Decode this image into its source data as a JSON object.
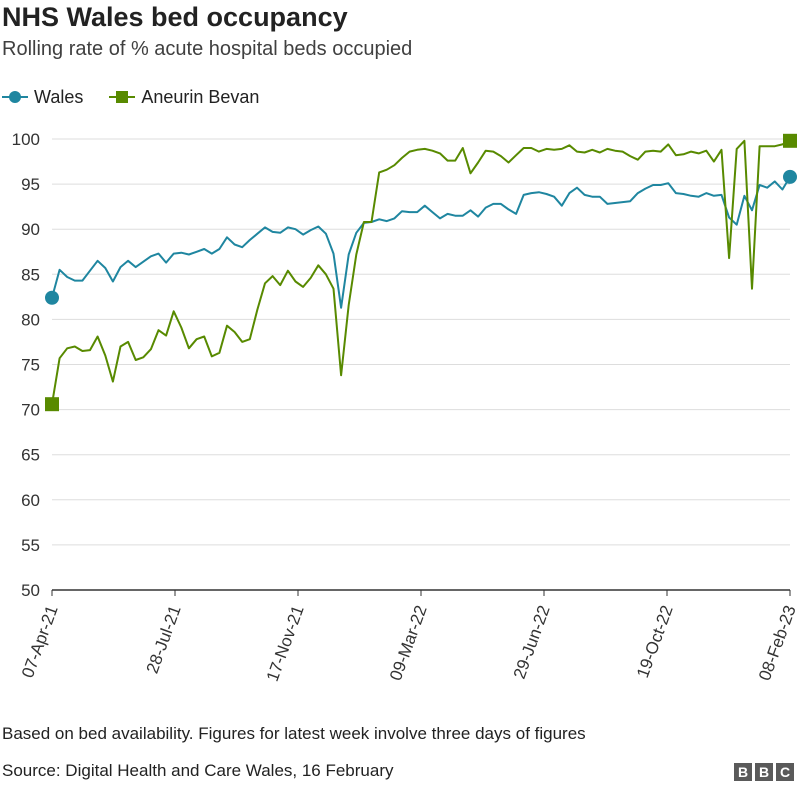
{
  "title": "NHS Wales bed occupancy",
  "subtitle": "Rolling rate of % acute hospital beds occupied",
  "footer": {
    "note": "Based on bed availability. Figures for latest week involve three days of figures",
    "source": "Source: Digital Health and Care Wales, 16 February",
    "brand": [
      "B",
      "B",
      "C"
    ]
  },
  "colors": {
    "wales": "#1f86a0",
    "aneurin_bevan": "#588a00",
    "grid": "#dddddd",
    "axis": "#333333"
  },
  "chart_data": {
    "type": "line",
    "legend_position": "top-left",
    "grid": true,
    "ylim": [
      50,
      100
    ],
    "yticks": [
      50,
      55,
      60,
      65,
      70,
      75,
      80,
      85,
      90,
      95,
      100
    ],
    "xlim": [
      "2021-04-07",
      "2023-02-08"
    ],
    "xticks": [
      {
        "date": "2021-04-07",
        "label": "07-Apr-21"
      },
      {
        "date": "2021-07-28",
        "label": "28-Jul-21"
      },
      {
        "date": "2021-11-17",
        "label": "17-Nov-21"
      },
      {
        "date": "2022-03-09",
        "label": "09-Mar-22"
      },
      {
        "date": "2022-06-29",
        "label": "29-Jun-22"
      },
      {
        "date": "2022-10-19",
        "label": "19-Oct-22"
      },
      {
        "date": "2023-02-08",
        "label": "08-Feb-23"
      }
    ],
    "series": [
      {
        "name": "Wales",
        "marker": "circle",
        "values": [
          82.4,
          85.5,
          84.7,
          84.3,
          84.3,
          85.4,
          86.5,
          85.7,
          84.2,
          85.8,
          86.5,
          85.8,
          86.4,
          87.0,
          87.3,
          86.3,
          87.3,
          87.4,
          87.2,
          87.5,
          87.8,
          87.3,
          87.8,
          89.1,
          88.3,
          88.0,
          88.8,
          89.5,
          90.2,
          89.7,
          89.6,
          90.2,
          90.0,
          89.4,
          89.9,
          90.3,
          89.5,
          87.3,
          81.3,
          87.2,
          89.6,
          90.7,
          90.8,
          91.1,
          90.9,
          91.2,
          92.0,
          91.9,
          91.9,
          92.6,
          91.9,
          91.2,
          91.7,
          91.5,
          91.5,
          92.1,
          91.4,
          92.4,
          92.8,
          92.8,
          92.2,
          91.7,
          93.8,
          94.0,
          94.1,
          93.9,
          93.6,
          92.6,
          94.0,
          94.6,
          93.8,
          93.6,
          93.6,
          92.8,
          92.9,
          93.0,
          93.1,
          94.0,
          94.5,
          94.9,
          94.9,
          95.1,
          94.0,
          93.9,
          93.7,
          93.6,
          94.0,
          93.7,
          93.8,
          91.3,
          90.5,
          93.7,
          92.1,
          94.9,
          94.6,
          95.3,
          94.4,
          95.8
        ]
      },
      {
        "name": "Aneurin Bevan",
        "marker": "square",
        "values": [
          70.6,
          75.7,
          76.8,
          77.0,
          76.5,
          76.6,
          78.1,
          76.0,
          73.1,
          77.0,
          77.5,
          75.5,
          75.8,
          76.7,
          78.8,
          78.2,
          80.9,
          79.1,
          76.8,
          77.8,
          78.1,
          75.9,
          76.3,
          79.3,
          78.6,
          77.5,
          77.8,
          81.1,
          84.0,
          84.8,
          83.8,
          85.4,
          84.2,
          83.6,
          84.6,
          86.0,
          85.0,
          83.4,
          73.8,
          81.6,
          87.2,
          90.8,
          90.8,
          96.3,
          96.6,
          97.1,
          97.9,
          98.6,
          98.8,
          98.9,
          98.7,
          98.4,
          97.6,
          97.6,
          99.0,
          96.2,
          97.4,
          98.7,
          98.6,
          98.1,
          97.4,
          98.2,
          99.0,
          99.0,
          98.6,
          98.9,
          98.8,
          98.9,
          99.3,
          98.6,
          98.5,
          98.8,
          98.5,
          98.9,
          98.7,
          98.6,
          98.1,
          97.7,
          98.6,
          98.7,
          98.6,
          99.4,
          98.2,
          98.3,
          98.6,
          98.4,
          98.7,
          97.5,
          98.8,
          86.8,
          98.9,
          99.8,
          83.4,
          99.2,
          99.2,
          99.2,
          99.4,
          99.8
        ]
      }
    ]
  }
}
